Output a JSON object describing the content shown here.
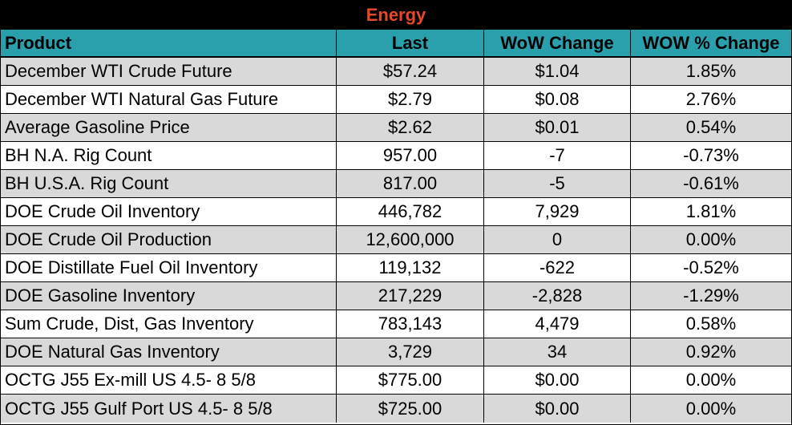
{
  "title": "Energy",
  "colors": {
    "title_bg": "#000000",
    "title_text": "#e8472a",
    "header_bg": "#2aa0ad",
    "row_shaded": "#d9d9d9",
    "row_white": "#ffffff"
  },
  "headers": {
    "product": "Product",
    "last": "Last",
    "wow_change": "WoW Change",
    "wow_pct_change": "WOW % Change"
  },
  "rows": [
    {
      "product": "December WTI Crude Future",
      "last": "$57.24",
      "wow": "$1.04",
      "pct": "1.85%"
    },
    {
      "product": "December WTI Natural Gas Future",
      "last": "$2.79",
      "wow": "$0.08",
      "pct": "2.76%"
    },
    {
      "product": "Average Gasoline Price",
      "last": "$2.62",
      "wow": "$0.01",
      "pct": "0.54%"
    },
    {
      "product": "BH N.A. Rig Count",
      "last": "957.00",
      "wow": "-7",
      "pct": "-0.73%"
    },
    {
      "product": "BH U.S.A. Rig Count",
      "last": "817.00",
      "wow": "-5",
      "pct": "-0.61%"
    },
    {
      "product": "DOE Crude Oil Inventory",
      "last": "446,782",
      "wow": "7,929",
      "pct": "1.81%"
    },
    {
      "product": "DOE Crude Oil Production",
      "last": "12,600,000",
      "wow": "0",
      "pct": "0.00%"
    },
    {
      "product": "DOE Distillate Fuel Oil Inventory",
      "last": "119,132",
      "wow": "-622",
      "pct": "-0.52%"
    },
    {
      "product": "DOE Gasoline Inventory",
      "last": "217,229",
      "wow": "-2,828",
      "pct": "-1.29%"
    },
    {
      "product": "Sum Crude, Dist, Gas Inventory",
      "last": "783,143",
      "wow": "4,479",
      "pct": "0.58%"
    },
    {
      "product": "DOE Natural Gas Inventory",
      "last": "3,729",
      "wow": "34",
      "pct": "0.92%"
    },
    {
      "product": "OCTG J55 Ex-mill US 4.5- 8 5/8",
      "last": "$775.00",
      "wow": "$0.00",
      "pct": "0.00%"
    },
    {
      "product": "OCTG J55 Gulf Port US 4.5- 8 5/8",
      "last": "$725.00",
      "wow": "$0.00",
      "pct": "0.00%"
    }
  ]
}
